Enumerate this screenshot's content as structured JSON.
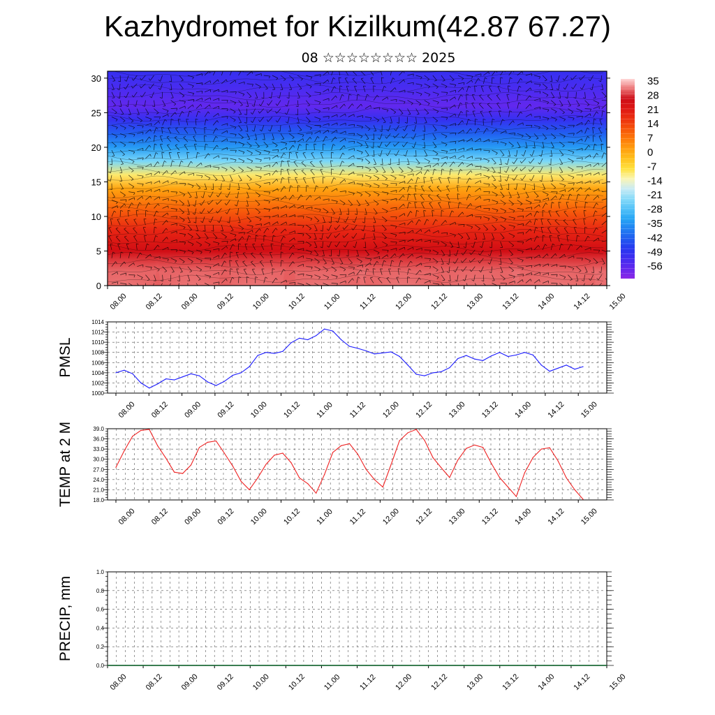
{
  "title": "Kazhydromet for Kizilkum(42.87 67.27)",
  "subtitle": "08 ☆☆☆☆☆☆☆☆ 2025",
  "colors": {
    "pmsl_line": "#1a1aff",
    "temp_line": "#ee2222",
    "precip_line": "#1f6b3a"
  },
  "time_ticks": [
    "08.00",
    "08.12",
    "09.00",
    "09.12",
    "10.00",
    "10.12",
    "11.00",
    "11.12",
    "12.00",
    "12.12",
    "13.00",
    "13.12",
    "14.00",
    "14.12",
    "15.00"
  ],
  "chart_data": [
    {
      "type": "heatmap",
      "name": "cross-section temperature with wind barbs",
      "x_ticks": [
        "08.00",
        "08.12",
        "09.00",
        "09.12",
        "10.00",
        "10.12",
        "11.00",
        "11.12",
        "12.00",
        "12.12",
        "13.00",
        "13.12",
        "14.00",
        "14.12",
        "15.00"
      ],
      "y_ticks": [
        "0",
        "5",
        "10",
        "15",
        "20",
        "25",
        "30"
      ],
      "ylim": [
        0,
        31
      ],
      "colorbar_labels": [
        "35",
        "28",
        "21",
        "14",
        "7",
        "0",
        "-7",
        "-14",
        "-21",
        "-28",
        "-35",
        "-42",
        "-49",
        "-56"
      ],
      "colorbar_range": [
        -60,
        38
      ],
      "layers": [
        {
          "height": 2,
          "value": 33
        },
        {
          "height": 5,
          "value": 27
        },
        {
          "height": 8,
          "value": 20
        },
        {
          "height": 11,
          "value": 12
        },
        {
          "height": 14,
          "value": 3
        },
        {
          "height": 16,
          "value": -8
        },
        {
          "height": 18,
          "value": -22
        },
        {
          "height": 20,
          "value": -32
        },
        {
          "height": 22,
          "value": -40
        },
        {
          "height": 24,
          "value": -48
        },
        {
          "height": 26,
          "value": -55
        },
        {
          "height": 28,
          "value": -52
        },
        {
          "height": 31,
          "value": -48
        }
      ]
    },
    {
      "type": "line",
      "ylabel": "PMSL",
      "ylim": [
        1000,
        1014
      ],
      "y_ticks": [
        "1000",
        "1002",
        "1004",
        "1006",
        "1008",
        "1010",
        "1012",
        "1014"
      ],
      "x_ticks": [
        "08.00",
        "08.12",
        "09.00",
        "09.12",
        "10.00",
        "10.12",
        "11.00",
        "11.12",
        "12.00",
        "12.12",
        "13.00",
        "13.12",
        "14.00",
        "14.12",
        "15.00"
      ],
      "x_step_hours": 3,
      "values": [
        1004.0,
        1004.5,
        1003.8,
        1002.0,
        1001.0,
        1001.8,
        1002.8,
        1002.6,
        1003.2,
        1003.8,
        1003.4,
        1002.2,
        1001.5,
        1002.3,
        1003.5,
        1004.0,
        1005.2,
        1007.4,
        1008.0,
        1007.8,
        1008.2,
        1009.9,
        1010.8,
        1010.5,
        1011.3,
        1012.6,
        1012.2,
        1010.5,
        1009.2,
        1008.8,
        1008.3,
        1007.7,
        1007.9,
        1008.1,
        1007.2,
        1005.5,
        1003.7,
        1003.4,
        1004.0,
        1004.2,
        1005.0,
        1006.8,
        1007.4,
        1006.7,
        1006.4,
        1007.3,
        1008.0,
        1007.2,
        1007.5,
        1008.0,
        1007.5,
        1005.5,
        1004.3,
        1004.9,
        1005.5,
        1004.7,
        1005.2
      ]
    },
    {
      "type": "line",
      "ylabel": "TEMP at 2 M",
      "ylim": [
        18,
        39
      ],
      "y_ticks": [
        "18.0",
        "21.0",
        "24.0",
        "27.0",
        "30.0",
        "33.0",
        "36.0",
        "39.0"
      ],
      "x_ticks": [
        "08.00",
        "08.12",
        "09.00",
        "09.12",
        "10.00",
        "10.12",
        "11.00",
        "11.12",
        "12.00",
        "12.12",
        "13.00",
        "13.12",
        "14.00",
        "14.12",
        "15.00"
      ],
      "x_step_hours": 3,
      "values": [
        27.6,
        32.5,
        36.8,
        38.5,
        38.8,
        34.0,
        30.3,
        26.2,
        25.8,
        28.3,
        33.5,
        35.0,
        35.4,
        31.8,
        28.0,
        23.5,
        21.0,
        24.5,
        28.5,
        31.2,
        31.8,
        29.0,
        24.5,
        22.8,
        20.0,
        25.5,
        32.0,
        34.0,
        34.6,
        31.5,
        27.0,
        24.0,
        21.8,
        28.5,
        35.5,
        37.8,
        38.8,
        35.6,
        30.5,
        27.5,
        24.6,
        29.8,
        33.2,
        34.2,
        33.5,
        28.8,
        24.6,
        21.8,
        19.0,
        26.0,
        30.5,
        33.0,
        33.4,
        29.5,
        24.5,
        21.0,
        18.2
      ]
    },
    {
      "type": "line",
      "ylabel": "PRECIP, mm",
      "ylim": [
        0,
        1
      ],
      "y_ticks": [
        "0.0",
        "0.2",
        "0.4",
        "0.6",
        "0.8",
        "1.0"
      ],
      "x_ticks": [
        "08.00",
        "08.12",
        "09.00",
        "09.12",
        "10.00",
        "10.12",
        "11.00",
        "11.12",
        "12.00",
        "12.12",
        "13.00",
        "13.12",
        "14.00",
        "14.12",
        "15.00"
      ],
      "values": [
        0,
        0
      ]
    }
  ]
}
